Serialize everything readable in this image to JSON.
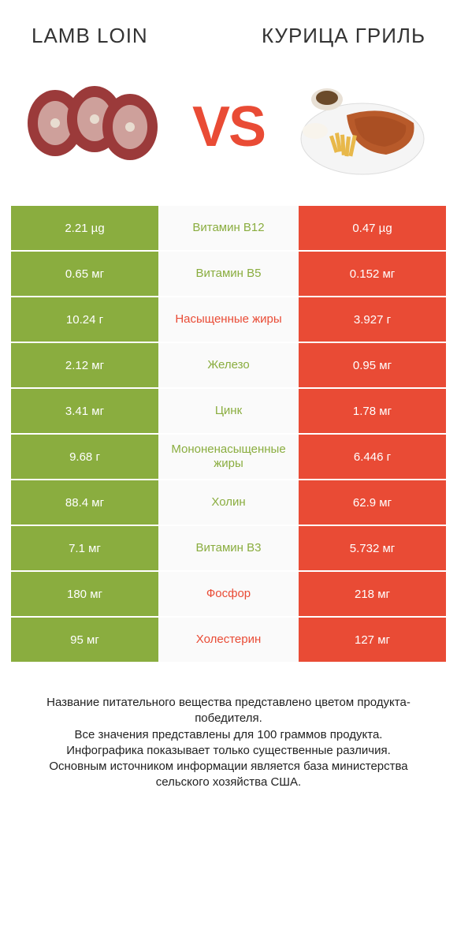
{
  "header": {
    "left_title": "Lamb loin",
    "right_title": "Курица гриль",
    "vs": "VS"
  },
  "colors": {
    "left_bar": "#8aad3f",
    "right_bar": "#e94b35",
    "left_label": "#8aad3f",
    "right_label": "#e94b35",
    "vs": "#e94b35"
  },
  "rows": [
    {
      "left": "2.21 µg",
      "label": "Витамин B12",
      "right": "0.47 µg",
      "winner": "left"
    },
    {
      "left": "0.65 мг",
      "label": "Витамин B5",
      "right": "0.152 мг",
      "winner": "left"
    },
    {
      "left": "10.24 г",
      "label": "Насыщенные жиры",
      "right": "3.927 г",
      "winner": "right"
    },
    {
      "left": "2.12 мг",
      "label": "Железо",
      "right": "0.95 мг",
      "winner": "left"
    },
    {
      "left": "3.41 мг",
      "label": "Цинк",
      "right": "1.78 мг",
      "winner": "left"
    },
    {
      "left": "9.68 г",
      "label": "Мононенасыщенные жиры",
      "right": "6.446 г",
      "winner": "left"
    },
    {
      "left": "88.4 мг",
      "label": "Холин",
      "right": "62.9 мг",
      "winner": "left"
    },
    {
      "left": "7.1 мг",
      "label": "Витамин B3",
      "right": "5.732 мг",
      "winner": "left"
    },
    {
      "left": "180 мг",
      "label": "Фосфор",
      "right": "218 мг",
      "winner": "right"
    },
    {
      "left": "95 мг",
      "label": "Холестерин",
      "right": "127 мг",
      "winner": "right"
    }
  ],
  "footer": {
    "line1": "Название питательного вещества представлено цветом продукта-победителя.",
    "line2": "Все значения представлены для 100 граммов продукта.",
    "line3": "Инфографика показывает только существенные различия.",
    "line4": "Основным источником информации является база министерства сельского хозяйства США."
  }
}
